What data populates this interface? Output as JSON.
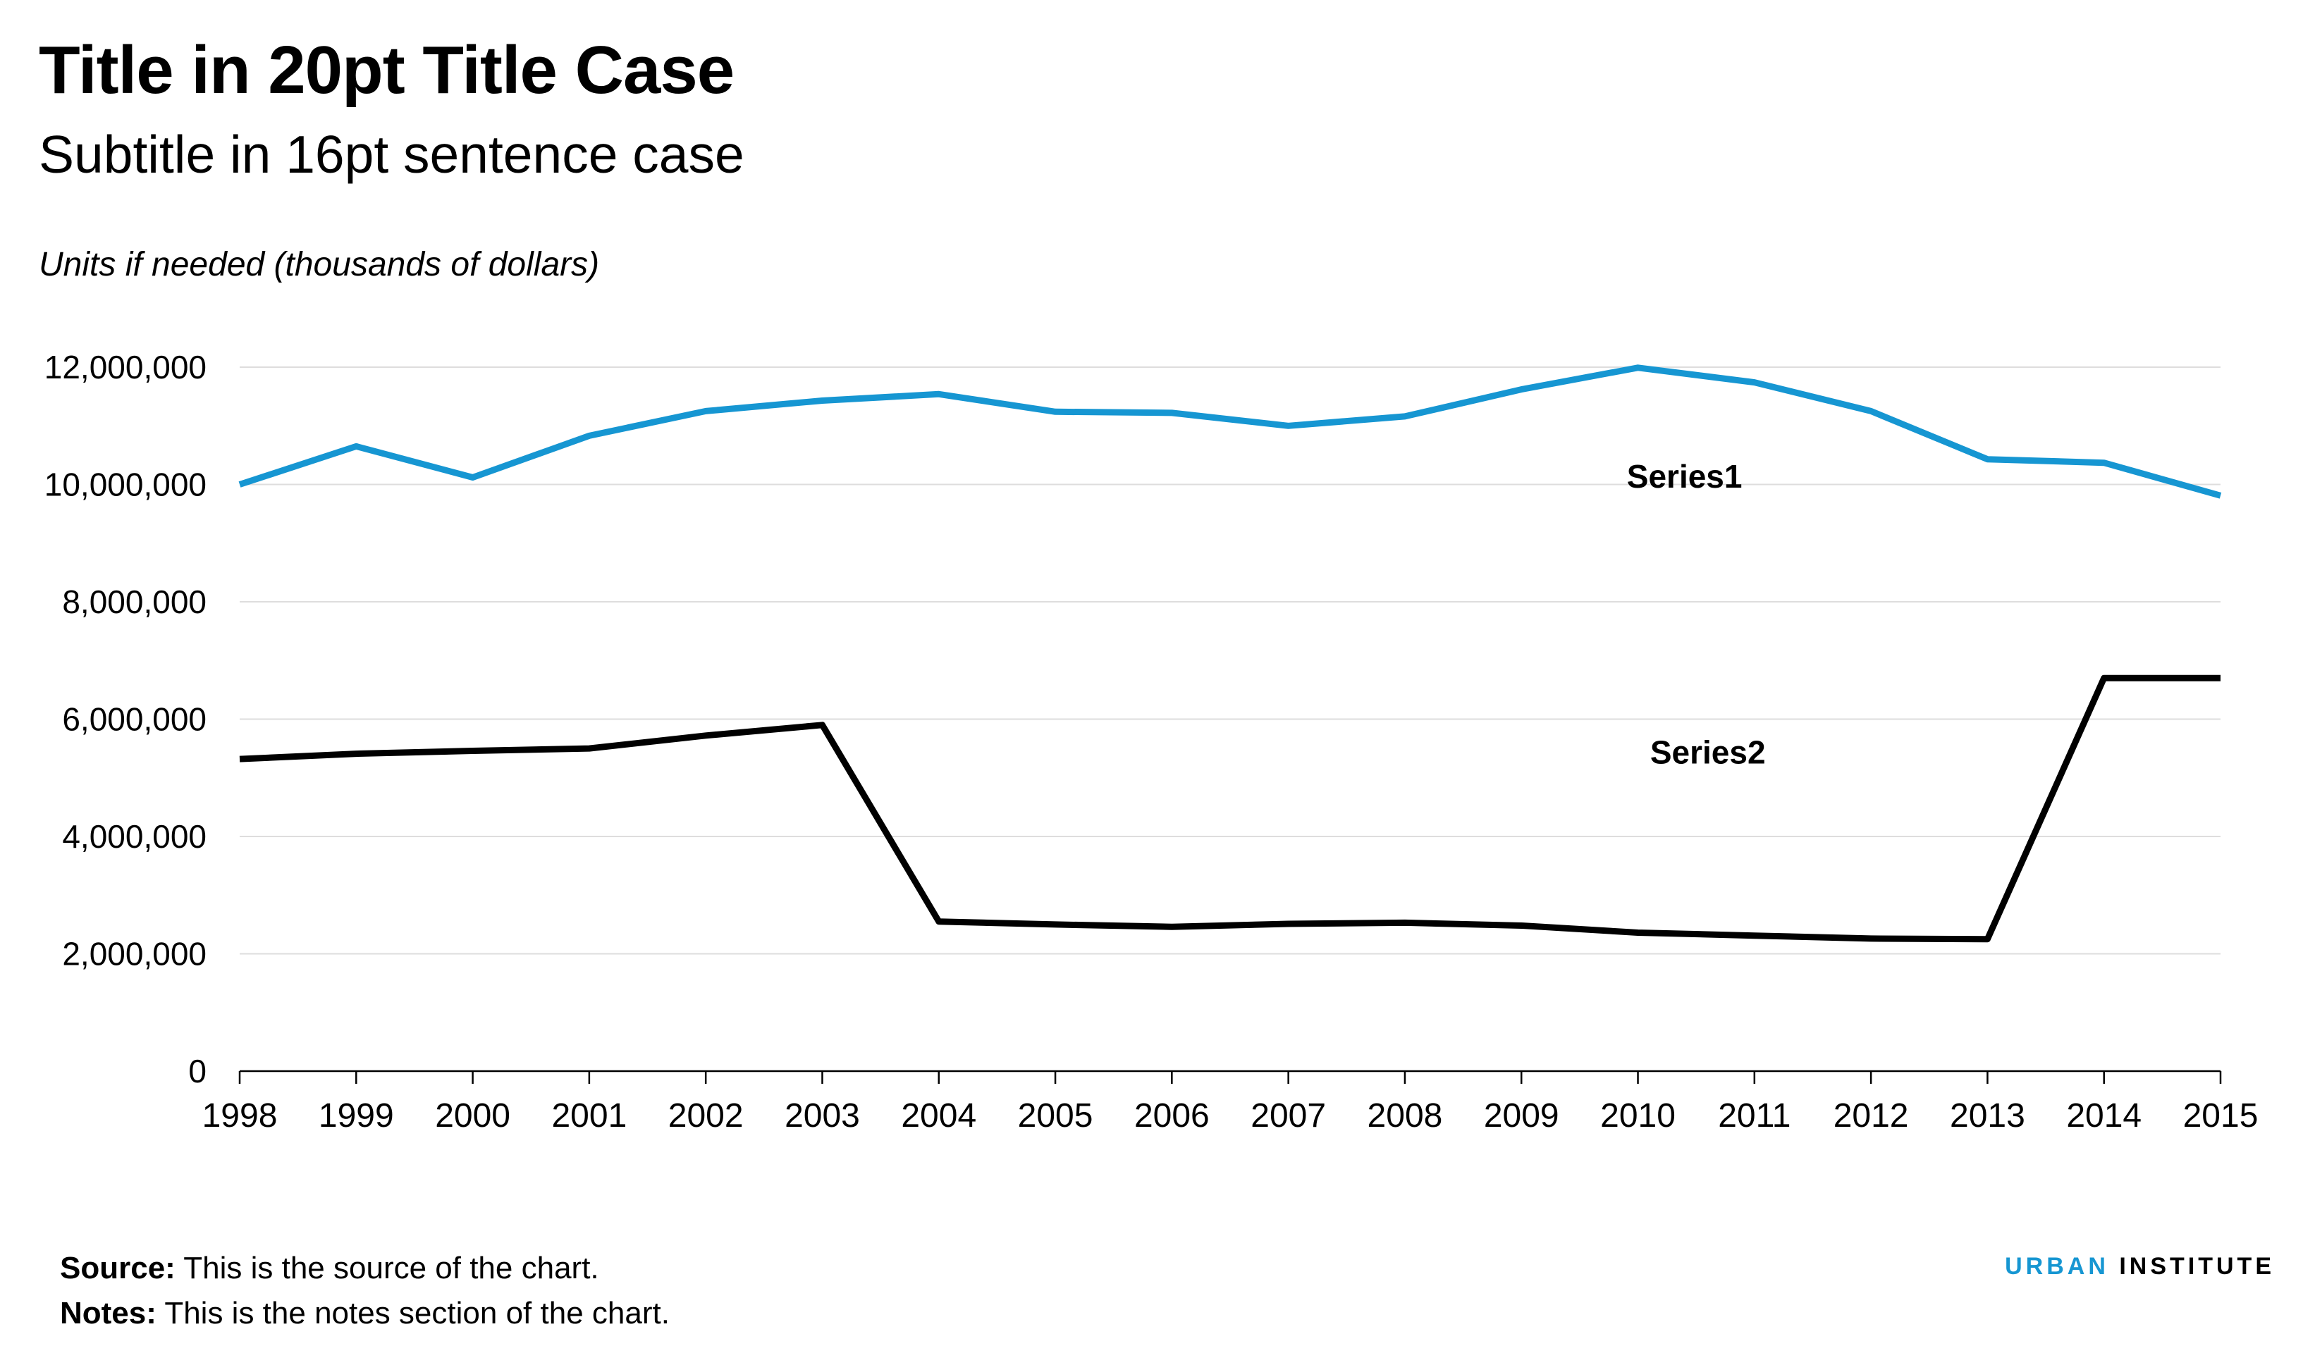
{
  "header": {
    "title": "Title in 20pt Title Case",
    "subtitle": "Subtitle in 16pt sentence case",
    "units": "Units if needed (thousands of dollars)"
  },
  "footer": {
    "source_label": "Source:",
    "source_text": " This is the source of the chart.",
    "notes_label": "Notes:",
    "notes_text": " This is the notes section of the chart.",
    "brand_first": "URBAN",
    "brand_second": " INSTITUTE"
  },
  "colors": {
    "series1": "#1696d2",
    "series2": "#000000",
    "gridline": "#dedddd",
    "axis": "#000000",
    "brand_accent": "#1696d2"
  },
  "chart_data": {
    "type": "line",
    "title": "Title in 20pt Title Case",
    "subtitle": "Subtitle in 16pt sentence case",
    "ylabel": "Units if needed (thousands of dollars)",
    "xlabel": "",
    "ylim": [
      0,
      12000000
    ],
    "yticks": [
      0,
      2000000,
      4000000,
      6000000,
      8000000,
      10000000,
      12000000
    ],
    "ytick_labels": [
      "0",
      "2,000,000",
      "4,000,000",
      "6,000,000",
      "8,000,000",
      "10,000,000",
      "12,000,000"
    ],
    "grid": true,
    "legend": "direct labels on lines",
    "x": [
      "1998",
      "1999",
      "2000",
      "2001",
      "2002",
      "2003",
      "2004",
      "2005",
      "2006",
      "2007",
      "2008",
      "2009",
      "2010",
      "2011",
      "2012",
      "2013",
      "2014",
      "2015"
    ],
    "series": [
      {
        "name": "Series1",
        "color": "#1696d2",
        "values": [
          10000000,
          10650000,
          10120000,
          10830000,
          11250000,
          11430000,
          11540000,
          11240000,
          11220000,
          11000000,
          11160000,
          11620000,
          11990000,
          11740000,
          11250000,
          10430000,
          10370000,
          9810000
        ]
      },
      {
        "name": "Series2",
        "color": "#000000",
        "values": [
          5320000,
          5410000,
          5460000,
          5500000,
          5720000,
          5900000,
          2550000,
          2500000,
          2460000,
          2510000,
          2530000,
          2480000,
          2360000,
          2310000,
          2260000,
          2250000,
          6700000,
          6700000
        ]
      }
    ]
  }
}
